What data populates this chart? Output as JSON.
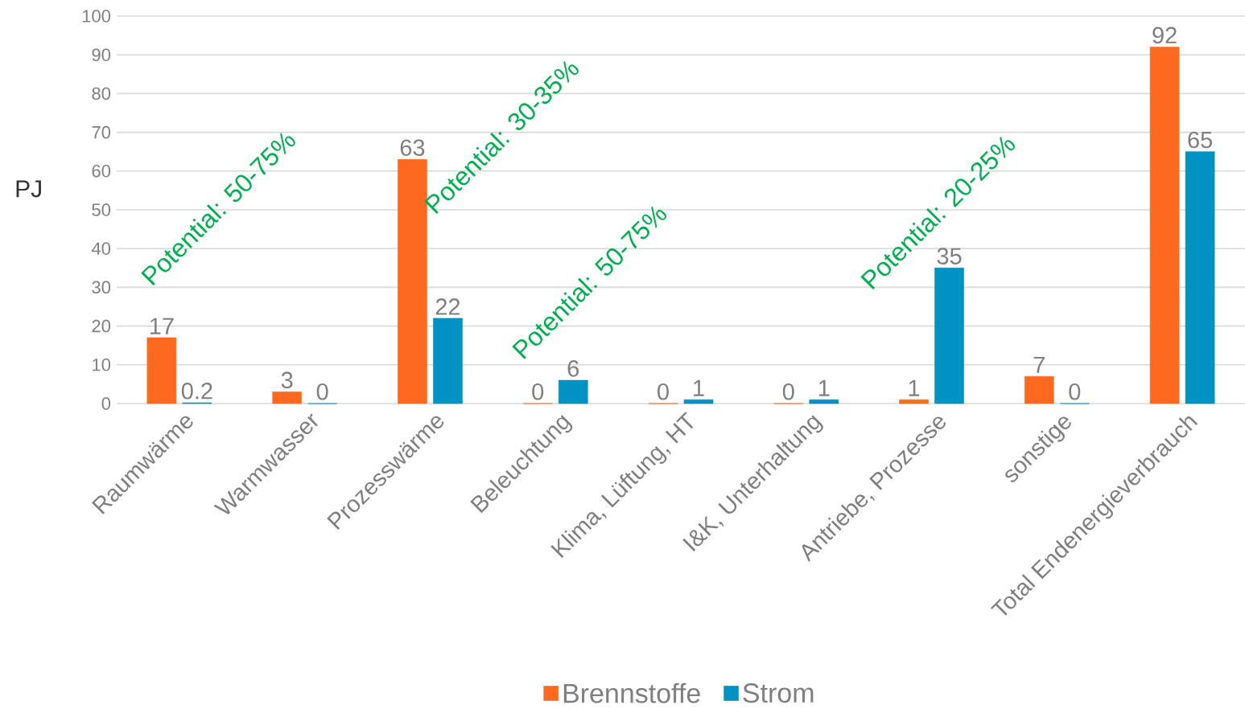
{
  "chart_data": {
    "type": "bar",
    "ylabel": "PJ",
    "categories": [
      "Raumwärme",
      "Warmwasser",
      "Prozesswärme",
      "Beleuchtung",
      "Klima, Lüftung, HT",
      "I&K, Unterhaltung",
      "Antriebe, Prozesse",
      "sonstige",
      "Total Endenergieverbrauch"
    ],
    "series": [
      {
        "name": "Brennstoffe",
        "color": "#fd6a1f",
        "values": [
          17,
          3,
          63,
          0,
          0,
          0,
          1,
          7,
          92
        ]
      },
      {
        "name": "Strom",
        "color": "#0092c3",
        "values": [
          0.2,
          0,
          22,
          6,
          1,
          1,
          35,
          0,
          65
        ]
      }
    ],
    "ylim": [
      0,
      100
    ],
    "yticks": [
      0,
      10,
      20,
      30,
      40,
      50,
      60,
      70,
      80,
      90,
      100
    ],
    "grid": "y",
    "legend": "bottom",
    "data_labels": true,
    "annotations": [
      "Potential: 50-75%",
      "Potential: 30-35%",
      "Potential: 50-75%",
      "Potential: 20-25%"
    ]
  }
}
